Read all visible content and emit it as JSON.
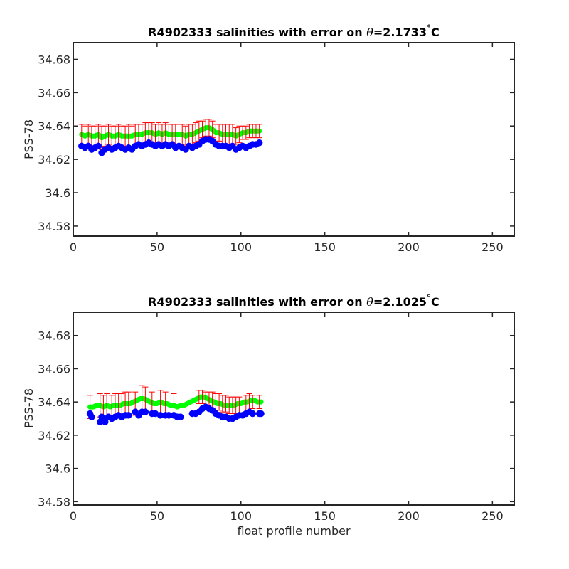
{
  "chart_data": [
    {
      "type": "scatter",
      "title_prefix": "R4902333 salinities with error on ",
      "title_theta": "θ",
      "title_value": "=2.1733",
      "title_degree": "°",
      "title_unit": "C",
      "xlabel": "",
      "ylabel": "PSS-78",
      "xlim": [
        0,
        263
      ],
      "ylim": [
        34.574,
        34.69
      ],
      "xticks": [
        0,
        50,
        100,
        150,
        200,
        250
      ],
      "yticks": [
        34.58,
        34.6,
        34.62,
        34.64,
        34.66,
        34.68
      ],
      "ytick_labels": [
        "34.58",
        "34.6",
        "34.62",
        "34.64",
        "34.66",
        "34.68"
      ],
      "colors": {
        "raw": "#0000ff",
        "calibrated": "#00ff00",
        "error": "#ff0000"
      },
      "series": [
        {
          "role": "raw",
          "x": [
            5,
            7,
            9,
            11,
            13,
            15,
            17,
            19,
            21,
            23,
            25,
            27,
            29,
            31,
            33,
            35,
            37,
            39,
            41,
            43,
            45,
            47,
            49,
            51,
            53,
            55,
            57,
            59,
            61,
            63,
            65,
            67,
            69,
            71,
            73,
            75,
            77,
            79,
            81,
            83,
            85,
            87,
            89,
            91,
            93,
            95,
            97,
            99,
            101,
            103,
            105,
            107,
            109,
            111
          ],
          "y": [
            34.628,
            34.627,
            34.628,
            34.626,
            34.627,
            34.628,
            34.624,
            34.626,
            34.627,
            34.626,
            34.627,
            34.628,
            34.627,
            34.626,
            34.627,
            34.626,
            34.628,
            34.629,
            34.628,
            34.629,
            34.63,
            34.629,
            34.628,
            34.629,
            34.628,
            34.629,
            34.628,
            34.629,
            34.627,
            34.628,
            34.627,
            34.626,
            34.628,
            34.627,
            34.628,
            34.629,
            34.631,
            34.632,
            34.632,
            34.631,
            34.629,
            34.628,
            34.628,
            34.628,
            34.627,
            34.628,
            34.626,
            34.627,
            34.628,
            34.627,
            34.628,
            34.629,
            34.629,
            34.63
          ]
        },
        {
          "role": "calibrated",
          "x": [
            5,
            7,
            9,
            11,
            13,
            15,
            17,
            19,
            21,
            23,
            25,
            27,
            29,
            31,
            33,
            35,
            37,
            39,
            41,
            43,
            45,
            47,
            49,
            51,
            53,
            55,
            57,
            59,
            61,
            63,
            65,
            67,
            69,
            71,
            73,
            75,
            77,
            79,
            81,
            83,
            85,
            87,
            89,
            91,
            93,
            95,
            97,
            99,
            101,
            103,
            105,
            107,
            109,
            111
          ],
          "y": [
            34.635,
            34.634,
            34.635,
            34.634,
            34.634,
            34.635,
            34.633,
            34.634,
            34.635,
            34.634,
            34.634,
            34.635,
            34.634,
            34.634,
            34.634,
            34.634,
            34.635,
            34.635,
            34.635,
            34.636,
            34.636,
            34.636,
            34.635,
            34.636,
            34.635,
            34.636,
            34.635,
            34.635,
            34.635,
            34.635,
            34.635,
            34.634,
            34.635,
            34.635,
            34.636,
            34.637,
            34.638,
            34.639,
            34.639,
            34.638,
            34.636,
            34.636,
            34.635,
            34.635,
            34.635,
            34.635,
            34.634,
            34.635,
            34.636,
            34.636,
            34.637,
            34.637,
            34.637,
            34.637
          ],
          "error": [
            0.006,
            0.006,
            0.006,
            0.006,
            0.006,
            0.006,
            0.007,
            0.006,
            0.006,
            0.006,
            0.006,
            0.006,
            0.006,
            0.006,
            0.007,
            0.006,
            0.006,
            0.006,
            0.006,
            0.006,
            0.006,
            0.006,
            0.006,
            0.006,
            0.006,
            0.006,
            0.006,
            0.006,
            0.006,
            0.006,
            0.006,
            0.006,
            0.006,
            0.006,
            0.006,
            0.006,
            0.005,
            0.005,
            0.005,
            0.005,
            0.005,
            0.005,
            0.006,
            0.006,
            0.006,
            0.006,
            0.005,
            0.005,
            0.004,
            0.004,
            0.004,
            0.004,
            0.004,
            0.004
          ]
        }
      ]
    },
    {
      "type": "scatter",
      "title_prefix": "R4902333 salinities with error on ",
      "title_theta": "θ",
      "title_value": "=2.1025",
      "title_degree": "°",
      "title_unit": "C",
      "xlabel": "float profile number",
      "ylabel": "PSS-78",
      "xlim": [
        0,
        263
      ],
      "ylim": [
        34.578,
        34.694
      ],
      "xticks": [
        0,
        50,
        100,
        150,
        200,
        250
      ],
      "yticks": [
        34.58,
        34.6,
        34.62,
        34.64,
        34.66,
        34.68
      ],
      "ytick_labels": [
        "34.58",
        "34.6",
        "34.62",
        "34.64",
        "34.66",
        "34.68"
      ],
      "colors": {
        "raw": "#0000ff",
        "calibrated": "#00ff00",
        "error": "#ff0000"
      },
      "series": [
        {
          "role": "raw",
          "x": [
            10,
            11,
            16,
            17,
            19,
            21,
            23,
            25,
            27,
            29,
            31,
            33,
            37,
            39,
            41,
            43,
            47,
            49,
            52,
            55,
            57,
            60,
            62,
            64,
            71,
            73,
            75,
            77,
            79,
            81,
            83,
            85,
            87,
            89,
            91,
            93,
            95,
            97,
            99,
            101,
            103,
            105,
            107,
            111,
            112
          ],
          "y": [
            34.633,
            34.631,
            34.628,
            34.631,
            34.628,
            34.631,
            34.63,
            34.631,
            34.632,
            34.631,
            34.632,
            34.632,
            34.634,
            34.632,
            34.634,
            34.634,
            34.633,
            34.633,
            34.632,
            34.632,
            34.632,
            34.632,
            34.631,
            34.631,
            34.633,
            34.633,
            34.634,
            34.636,
            34.637,
            34.636,
            34.635,
            34.633,
            34.632,
            34.631,
            34.631,
            34.63,
            34.63,
            34.631,
            34.632,
            34.632,
            34.633,
            34.634,
            34.633,
            34.633,
            34.633
          ],
          "error": []
        },
        {
          "role": "calibrated",
          "x": [
            10,
            12,
            14,
            16,
            18,
            20,
            22,
            24,
            26,
            28,
            30,
            32,
            34,
            36,
            38,
            40,
            42,
            44,
            46,
            48,
            50,
            52,
            54,
            56,
            58,
            60,
            62,
            64,
            66,
            68,
            70,
            72,
            74,
            76,
            78,
            80,
            82,
            84,
            86,
            88,
            90,
            92,
            94,
            96,
            98,
            100,
            102,
            104,
            106,
            108,
            110,
            112
          ],
          "y": [
            34.637,
            34.637,
            34.638,
            34.638,
            34.637,
            34.638,
            34.637,
            34.638,
            34.638,
            34.638,
            34.639,
            34.639,
            34.639,
            34.64,
            34.641,
            34.642,
            34.642,
            34.641,
            34.64,
            34.639,
            34.639,
            34.64,
            34.639,
            34.639,
            34.638,
            34.638,
            34.637,
            34.638,
            34.638,
            34.639,
            34.64,
            34.641,
            34.642,
            34.643,
            34.643,
            34.642,
            34.641,
            34.64,
            34.639,
            34.639,
            34.638,
            34.638,
            34.638,
            34.638,
            34.639,
            34.639,
            34.64,
            34.64,
            34.641,
            34.641,
            34.64,
            34.64
          ]
        },
        {
          "role": "error",
          "x": [
            10,
            16,
            18,
            20,
            23,
            25,
            27,
            29,
            31,
            33,
            37,
            41,
            43,
            47,
            52,
            55,
            60,
            75,
            77,
            79,
            81,
            83,
            85,
            87,
            89,
            91,
            93,
            95,
            97,
            99,
            103,
            105,
            107,
            111
          ],
          "y": [
            34.637,
            34.638,
            34.637,
            34.638,
            34.637,
            34.638,
            34.638,
            34.638,
            34.639,
            34.639,
            34.639,
            34.642,
            34.641,
            34.639,
            34.64,
            34.639,
            34.638,
            34.643,
            34.643,
            34.642,
            34.642,
            34.641,
            34.64,
            34.64,
            34.639,
            34.639,
            34.638,
            34.638,
            34.638,
            34.638,
            34.639,
            34.64,
            34.64,
            34.64
          ],
          "error": [
            0.007,
            0.007,
            0.007,
            0.007,
            0.007,
            0.007,
            0.007,
            0.007,
            0.007,
            0.007,
            0.007,
            0.008,
            0.008,
            0.007,
            0.007,
            0.007,
            0.007,
            0.004,
            0.004,
            0.004,
            0.004,
            0.005,
            0.005,
            0.005,
            0.005,
            0.005,
            0.005,
            0.005,
            0.005,
            0.005,
            0.005,
            0.005,
            0.004,
            0.004
          ]
        }
      ]
    }
  ]
}
